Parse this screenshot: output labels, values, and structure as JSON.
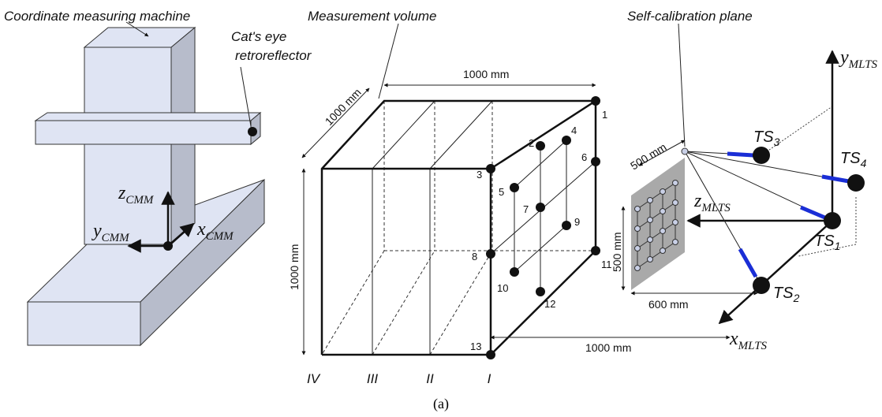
{
  "labels": {
    "cmm_title": "Coordinate measuring machine",
    "retroreflector": [
      "Cat's eye",
      "retroreflector"
    ],
    "measurement_volume": "Measurement volume",
    "self_calibration_plane": "Self-calibration plane",
    "caption": "(a)"
  },
  "cmm_axes": [
    {
      "symbol": "z",
      "sub": "CMM"
    },
    {
      "symbol": "y",
      "sub": "CMM"
    },
    {
      "symbol": "x",
      "sub": "CMM"
    }
  ],
  "dimensions": {
    "volume_width": "1000 mm",
    "volume_depth": "1000 mm",
    "volume_height": "1000 mm",
    "tracker_distance": "1000 mm",
    "plane_width": "500 mm",
    "plane_height": "500 mm",
    "plane_offset": "600 mm"
  },
  "planes": [
    "IV",
    "III",
    "II",
    "I"
  ],
  "points": [
    "1",
    "2",
    "3",
    "4",
    "5",
    "6",
    "7",
    "8",
    "9",
    "10",
    "11",
    "12",
    "13"
  ],
  "mlts_axes": [
    {
      "symbol": "y",
      "sub": "MLTS"
    },
    {
      "symbol": "z",
      "sub": "MLTS"
    },
    {
      "symbol": "x",
      "sub": "MLTS"
    }
  ],
  "trackers": [
    {
      "symbol": "TS",
      "sub": "1"
    },
    {
      "symbol": "TS",
      "sub": "2"
    },
    {
      "symbol": "TS",
      "sub": "3"
    },
    {
      "symbol": "TS",
      "sub": "4"
    }
  ]
}
